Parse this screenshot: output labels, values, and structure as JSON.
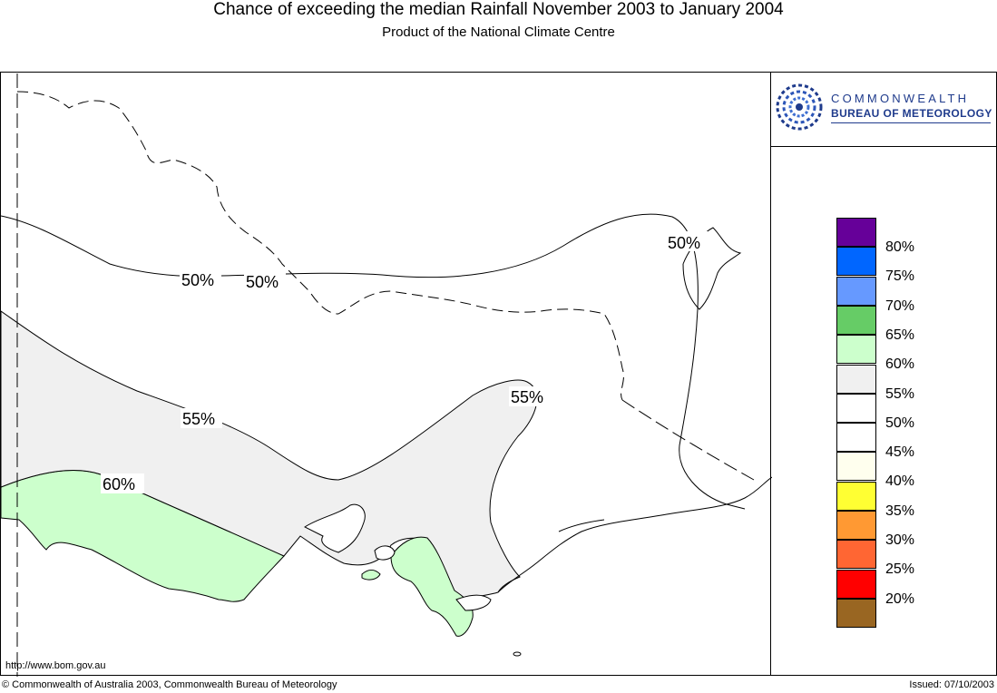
{
  "header": {
    "title": "Chance of exceeding the median Rainfall November 2003 to January 2004",
    "subtitle": "Product of the National Climate Centre"
  },
  "logo": {
    "line1": "COMMONWEALTH",
    "line2": "BUREAU OF METEOROLOGY",
    "icon": "bom-swirl-icon",
    "color": "#1f3b8c"
  },
  "map": {
    "region": "Victoria",
    "zones": [
      {
        "band": "60-65%",
        "color": "#ccffcc"
      },
      {
        "band": "55-60%",
        "color": "#f0f0f0"
      },
      {
        "band": "50-55%",
        "color": "#ffffff"
      }
    ],
    "contour_labels": [
      {
        "id": "c50a",
        "text": "50%"
      },
      {
        "id": "c50b",
        "text": "50%"
      },
      {
        "id": "c50c",
        "text": "50%"
      },
      {
        "id": "c55a",
        "text": "55%"
      },
      {
        "id": "c55b",
        "text": "55%"
      },
      {
        "id": "c60a",
        "text": "60%"
      }
    ]
  },
  "legend": {
    "items": [
      {
        "label": "80%",
        "color": "#660099"
      },
      {
        "label": "75%",
        "color": "#0066ff"
      },
      {
        "label": "70%",
        "color": "#6699ff"
      },
      {
        "label": "65%",
        "color": "#66cc66"
      },
      {
        "label": "60%",
        "color": "#ccffcc"
      },
      {
        "label": "55%",
        "color": "#f0f0f0"
      },
      {
        "label": "50%",
        "color": "#ffffff"
      },
      {
        "label": "45%",
        "color": "#ffffff"
      },
      {
        "label": "40%",
        "color": "#ffffee"
      },
      {
        "label": "35%",
        "color": "#ffff33"
      },
      {
        "label": "30%",
        "color": "#ff9933"
      },
      {
        "label": "25%",
        "color": "#ff6633"
      },
      {
        "label": "20%",
        "color": "#ff0000"
      },
      {
        "label": "",
        "color": "#996622"
      }
    ]
  },
  "footer": {
    "url": "http://www.bom.gov.au",
    "copyright": "© Commonwealth of Australia 2003, Commonwealth Bureau of Meteorology",
    "issued": "Issued: 07/10/2003"
  }
}
